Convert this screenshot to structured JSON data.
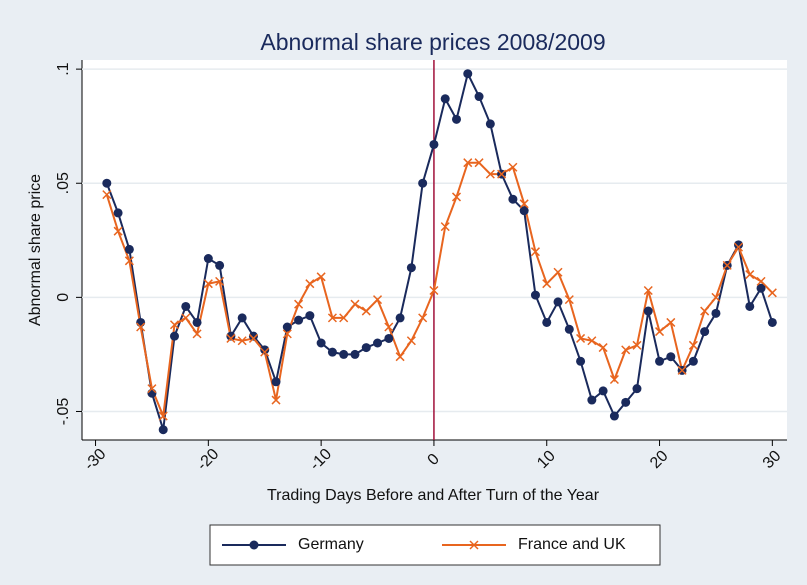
{
  "chart_data": {
    "type": "line",
    "title": "Abnormal share prices 2008/2009",
    "x_label": "Trading Days Before and After Turn of the Year",
    "y_label": "Abnormal share price",
    "x": [
      -29,
      -28,
      -27,
      -26,
      -25,
      -24,
      -23,
      -22,
      -21,
      -20,
      -19,
      -18,
      -17,
      -16,
      -15,
      -14,
      -13,
      -12,
      -11,
      -10,
      -9,
      -8,
      -7,
      -6,
      -5,
      -4,
      -3,
      -2,
      -1,
      0,
      1,
      2,
      3,
      4,
      5,
      6,
      7,
      8,
      9,
      10,
      11,
      12,
      13,
      14,
      15,
      16,
      17,
      18,
      19,
      20,
      21,
      22,
      23,
      24,
      25,
      26,
      27,
      28,
      29,
      30
    ],
    "series": [
      {
        "name": "Germany",
        "color": "#1a2a5c",
        "marker": "circle",
        "values": [
          0.05,
          0.037,
          0.021,
          -0.011,
          -0.042,
          -0.058,
          -0.017,
          -0.004,
          -0.011,
          0.017,
          0.014,
          -0.017,
          -0.009,
          -0.017,
          -0.023,
          -0.037,
          -0.013,
          -0.01,
          -0.008,
          -0.02,
          -0.024,
          -0.025,
          -0.025,
          -0.022,
          -0.02,
          -0.018,
          -0.009,
          0.013,
          0.05,
          0.067,
          0.087,
          0.078,
          0.098,
          0.088,
          0.076,
          0.054,
          0.043,
          0.038,
          0.001,
          -0.011,
          -0.002,
          -0.014,
          -0.028,
          -0.045,
          -0.041,
          -0.052,
          -0.046,
          -0.04,
          -0.006,
          -0.028,
          -0.026,
          -0.032,
          -0.028,
          -0.015,
          -0.007,
          0.014,
          0.023,
          -0.004,
          0.004,
          -0.011
        ]
      },
      {
        "name": "France and UK",
        "color": "#e8651f",
        "marker": "x",
        "values": [
          0.045,
          0.029,
          0.016,
          -0.013,
          -0.04,
          -0.052,
          -0.012,
          -0.009,
          -0.016,
          0.006,
          0.007,
          -0.018,
          -0.019,
          -0.018,
          -0.024,
          -0.045,
          -0.016,
          -0.003,
          0.006,
          0.009,
          -0.009,
          -0.009,
          -0.003,
          -0.006,
          -0.001,
          -0.013,
          -0.026,
          -0.019,
          -0.009,
          0.003,
          0.031,
          0.044,
          0.059,
          0.059,
          0.054,
          0.054,
          0.057,
          0.041,
          0.02,
          0.006,
          0.011,
          -0.001,
          -0.018,
          -0.019,
          -0.022,
          -0.036,
          -0.023,
          -0.021,
          0.003,
          -0.015,
          -0.011,
          -0.032,
          -0.021,
          -0.006,
          0.0,
          0.014,
          0.022,
          0.01,
          0.007,
          0.002
        ]
      }
    ],
    "xlim": [
      -31.2,
      31.3
    ],
    "xticks": [
      -30,
      -20,
      -10,
      0,
      10,
      20,
      30
    ],
    "ylim": [
      -0.0625,
      0.104
    ],
    "yticks": [
      {
        "value": -0.05,
        "label": "-.05"
      },
      0,
      {
        "value": 0.05,
        "label": ".05"
      },
      {
        "value": 0.1,
        "label": ".1"
      }
    ],
    "xline": 0,
    "xline_color": "#a0103a",
    "grid": true,
    "legend": "bottom"
  }
}
